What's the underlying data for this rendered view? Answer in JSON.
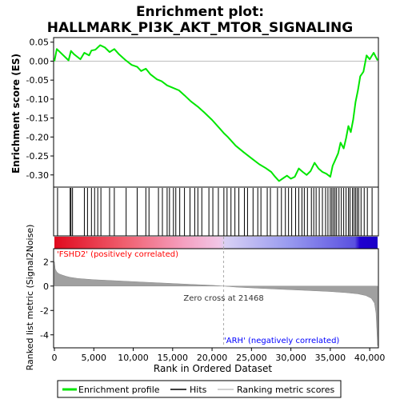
{
  "title_line1": "Enrichment plot:",
  "title_line2": "HALLMARK_PI3K_AKT_MTOR_SIGNALING",
  "ylabel_top": "Enrichment score (ES)",
  "ylabel_bottom": "Ranked list metric (Signal2Noise)",
  "xlabel": "Rank in Ordered Dataset",
  "label_positive": "'FSHD2' (positively correlated)",
  "label_negative": "'ARH' (negatively correlated)",
  "zero_cross_text": "Zero cross at 21468",
  "legend": {
    "enrichment": "Enrichment profile",
    "hits": "Hits",
    "ranking": "Ranking metric scores"
  },
  "colors": {
    "es_line": "#00e600",
    "hits": "#000000",
    "metric_fill": "#a0a0a0",
    "positive_text": "#ff0000",
    "negative_text": "#0000ff",
    "bar_red": "#e0001f",
    "bar_blue": "#1a00d0"
  },
  "chart_data": {
    "type": "line",
    "n_genes": 41000,
    "zero_cross": 21468,
    "es_axis": {
      "ylim": [
        -0.33,
        0.06
      ],
      "ticks": [
        0.05,
        0.0,
        -0.05,
        -0.1,
        -0.15,
        -0.2,
        -0.25,
        -0.3
      ],
      "tick_labels": [
        "0.05",
        "0.00",
        "-0.05",
        "-0.10",
        "-0.15",
        "-0.20",
        "-0.25",
        "-0.30"
      ]
    },
    "metric_axis": {
      "ylim": [
        -5,
        3
      ],
      "ticks": [
        2,
        0,
        -2,
        -4
      ],
      "tick_labels": [
        "2",
        "0",
        "-2",
        "-4"
      ]
    },
    "x_axis": {
      "xlim": [
        0,
        41000
      ],
      "ticks": [
        0,
        5000,
        10000,
        15000,
        20000,
        25000,
        30000,
        35000,
        40000
      ],
      "tick_labels": [
        "0",
        "5,000",
        "10,000",
        "15,000",
        "20,000",
        "25,000",
        "30,000",
        "35,000",
        "40,000"
      ]
    },
    "es_profile": {
      "x": [
        0,
        300,
        1800,
        2100,
        2500,
        3300,
        3800,
        4400,
        4700,
        5200,
        5800,
        6400,
        7000,
        7600,
        8200,
        9000,
        9800,
        10500,
        11000,
        11600,
        12200,
        13000,
        13600,
        14300,
        15000,
        15800,
        16500,
        17300,
        18200,
        19000,
        20000,
        21000,
        21500,
        22000,
        23000,
        24000,
        25000,
        26000,
        26800,
        27500,
        28000,
        28500,
        29000,
        29500,
        30000,
        30500,
        31000,
        31500,
        32000,
        32500,
        33000,
        33500,
        34000,
        34500,
        35000,
        35300,
        35600,
        36000,
        36300,
        36700,
        37000,
        37300,
        37600,
        37900,
        38200,
        38500,
        38800,
        39200,
        39600,
        40000,
        40500,
        41000
      ],
      "y": [
        0.0,
        0.032,
        0.002,
        0.027,
        0.018,
        0.005,
        0.022,
        0.015,
        0.028,
        0.03,
        0.042,
        0.036,
        0.024,
        0.032,
        0.018,
        0.003,
        -0.01,
        -0.015,
        -0.026,
        -0.02,
        -0.035,
        -0.048,
        -0.053,
        -0.064,
        -0.07,
        -0.077,
        -0.09,
        -0.106,
        -0.12,
        -0.135,
        -0.155,
        -0.178,
        -0.19,
        -0.2,
        -0.223,
        -0.24,
        -0.256,
        -0.272,
        -0.282,
        -0.292,
        -0.305,
        -0.316,
        -0.309,
        -0.302,
        -0.31,
        -0.305,
        -0.283,
        -0.292,
        -0.3,
        -0.29,
        -0.268,
        -0.283,
        -0.292,
        -0.297,
        -0.305,
        -0.276,
        -0.262,
        -0.243,
        -0.215,
        -0.23,
        -0.203,
        -0.171,
        -0.187,
        -0.154,
        -0.108,
        -0.077,
        -0.04,
        -0.028,
        0.015,
        0.005,
        0.022,
        0.002
      ]
    },
    "hits": [
      400,
      2000,
      2100,
      2300,
      3800,
      4200,
      4700,
      5100,
      5500,
      5900,
      7000,
      7600,
      9100,
      10500,
      11600,
      12000,
      13200,
      13700,
      14300,
      14600,
      15100,
      15400,
      15900,
      16500,
      17200,
      17800,
      18200,
      18700,
      19600,
      20100,
      20800,
      21500,
      21900,
      22400,
      22900,
      23400,
      24100,
      24500,
      25200,
      25800,
      26200,
      27000,
      27400,
      28300,
      28800,
      29300,
      29700,
      30100,
      30600,
      31000,
      31400,
      31700,
      32100,
      32600,
      32900,
      33200,
      33600,
      34000,
      34400,
      34700,
      35000,
      35200,
      35400,
      35600,
      35800,
      36100,
      36400,
      36700,
      37000,
      37300,
      37500,
      37800,
      38000,
      38200,
      38400,
      38600,
      38900,
      39300,
      39700,
      40300
    ],
    "metric_profile": {
      "x": [
        0,
        100,
        300,
        600,
        1000,
        1500,
        2000,
        3000,
        5000,
        8000,
        11000,
        14000,
        17000,
        20000,
        21468,
        23000,
        26000,
        29000,
        32000,
        35000,
        37000,
        38500,
        39500,
        40200,
        40600,
        40800,
        40900,
        41000
      ],
      "y": [
        2.0,
        1.4,
        1.15,
        1.0,
        0.9,
        0.8,
        0.72,
        0.62,
        0.52,
        0.43,
        0.33,
        0.24,
        0.15,
        0.06,
        0.0,
        -0.08,
        -0.18,
        -0.27,
        -0.36,
        -0.45,
        -0.54,
        -0.64,
        -0.78,
        -1.0,
        -1.4,
        -2.2,
        -3.5,
        -4.9
      ]
    }
  }
}
